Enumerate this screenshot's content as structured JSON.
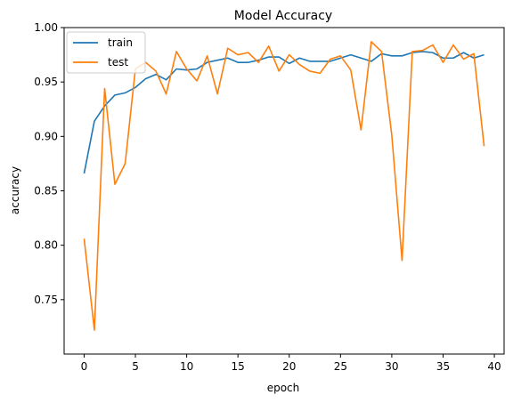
{
  "chart_data": {
    "type": "line",
    "title": "Model Accuracy",
    "xlabel": "epoch",
    "ylabel": "accuracy",
    "xlim": [
      -1.95,
      40.95
    ],
    "ylim": [
      0.7,
      1.0
    ],
    "xticks": [
      0,
      5,
      10,
      15,
      20,
      25,
      30,
      35,
      40
    ],
    "yticks": [
      0.75,
      0.8,
      0.85,
      0.9,
      0.95,
      1.0
    ],
    "xtick_labels": [
      "0",
      "5",
      "10",
      "15",
      "20",
      "25",
      "30",
      "35",
      "40"
    ],
    "ytick_labels": [
      "0.75",
      "0.80",
      "0.85",
      "0.90",
      "0.95",
      "1.00"
    ],
    "grid": false,
    "legend_position": "upper-left",
    "x": [
      0,
      1,
      2,
      3,
      4,
      5,
      6,
      7,
      8,
      9,
      10,
      11,
      12,
      13,
      14,
      15,
      16,
      17,
      18,
      19,
      20,
      21,
      22,
      23,
      24,
      25,
      26,
      27,
      28,
      29,
      30,
      31,
      32,
      33,
      34,
      35,
      36,
      37,
      38,
      39
    ],
    "series": [
      {
        "name": "train",
        "color": "#1f77b4",
        "values": [
          0.866,
          0.914,
          0.928,
          0.938,
          0.94,
          0.945,
          0.953,
          0.957,
          0.952,
          0.962,
          0.961,
          0.962,
          0.968,
          0.97,
          0.972,
          0.968,
          0.968,
          0.97,
          0.973,
          0.973,
          0.967,
          0.972,
          0.969,
          0.969,
          0.969,
          0.972,
          0.975,
          0.972,
          0.969,
          0.976,
          0.974,
          0.974,
          0.977,
          0.978,
          0.977,
          0.972,
          0.972,
          0.977,
          0.972,
          0.975
        ]
      },
      {
        "name": "test",
        "color": "#ff7f0e",
        "values": [
          0.806,
          0.722,
          0.944,
          0.856,
          0.875,
          0.962,
          0.968,
          0.96,
          0.939,
          0.978,
          0.962,
          0.951,
          0.974,
          0.939,
          0.981,
          0.975,
          0.977,
          0.968,
          0.983,
          0.96,
          0.975,
          0.966,
          0.96,
          0.958,
          0.971,
          0.974,
          0.961,
          0.906,
          0.987,
          0.978,
          0.901,
          0.786,
          0.978,
          0.979,
          0.984,
          0.968,
          0.984,
          0.971,
          0.976,
          0.891
        ]
      }
    ]
  }
}
